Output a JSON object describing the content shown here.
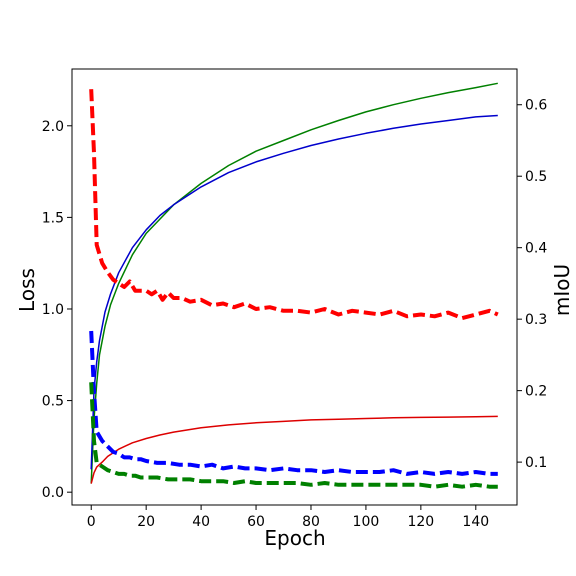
{
  "chart_data": {
    "type": "line",
    "title": "",
    "xlabel": "Epoch",
    "ylabel_left": "Loss",
    "ylabel_right": "mIoU",
    "xlim": [
      -7,
      155
    ],
    "ylim_left": [
      -0.07,
      2.31
    ],
    "ylim_right": [
      0.04,
      0.65
    ],
    "x_ticks": [
      0,
      20,
      40,
      60,
      80,
      100,
      120,
      140
    ],
    "x_tick_labels": [
      "0",
      "20",
      "40",
      "60",
      "80",
      "100",
      "120",
      "140"
    ],
    "y_left_ticks": [
      0.0,
      0.5,
      1.0,
      1.5,
      2.0
    ],
    "y_left_tick_labels": [
      "0.0",
      "0.5",
      "1.0",
      "1.5",
      "2.0"
    ],
    "y_right_ticks": [
      0.1,
      0.2,
      0.3,
      0.4,
      0.5,
      0.6
    ],
    "y_right_tick_labels": [
      "0.1",
      "0.2",
      "0.3",
      "0.4",
      "0.5",
      "0.6"
    ],
    "grid": false,
    "legend": "none",
    "series": [
      {
        "axis": "left",
        "style": "dashed",
        "color": "#ff0000",
        "x": [
          0,
          1,
          2,
          4,
          6,
          8,
          10,
          12,
          14,
          16,
          18,
          20,
          22,
          24,
          26,
          28,
          30,
          33,
          36,
          40,
          44,
          48,
          52,
          56,
          60,
          65,
          70,
          75,
          80,
          85,
          90,
          95,
          100,
          105,
          110,
          115,
          120,
          125,
          130,
          135,
          140,
          145,
          148
        ],
        "y": [
          2.2,
          1.85,
          1.35,
          1.25,
          1.2,
          1.16,
          1.14,
          1.12,
          1.15,
          1.1,
          1.1,
          1.1,
          1.08,
          1.1,
          1.05,
          1.09,
          1.06,
          1.06,
          1.04,
          1.05,
          1.02,
          1.03,
          1.01,
          1.03,
          1.0,
          1.01,
          0.99,
          0.99,
          0.98,
          1.0,
          0.97,
          0.99,
          0.98,
          0.97,
          0.99,
          0.96,
          0.97,
          0.96,
          0.98,
          0.95,
          0.97,
          0.99,
          0.97
        ]
      },
      {
        "axis": "left",
        "style": "dashed",
        "color": "#0000ff",
        "x": [
          0,
          1,
          2,
          4,
          6,
          8,
          10,
          12,
          14,
          16,
          18,
          20,
          24,
          28,
          32,
          36,
          40,
          44,
          48,
          52,
          56,
          60,
          65,
          70,
          75,
          80,
          85,
          90,
          95,
          100,
          105,
          110,
          115,
          120,
          125,
          130,
          135,
          140,
          145,
          148
        ],
        "y": [
          0.88,
          0.55,
          0.33,
          0.28,
          0.25,
          0.22,
          0.21,
          0.19,
          0.19,
          0.18,
          0.18,
          0.17,
          0.16,
          0.16,
          0.15,
          0.15,
          0.14,
          0.15,
          0.13,
          0.14,
          0.13,
          0.13,
          0.12,
          0.13,
          0.12,
          0.12,
          0.11,
          0.12,
          0.11,
          0.11,
          0.11,
          0.12,
          0.1,
          0.11,
          0.1,
          0.11,
          0.1,
          0.11,
          0.1,
          0.1
        ]
      },
      {
        "axis": "left",
        "style": "dashed",
        "color": "#008000",
        "x": [
          0,
          1,
          2,
          4,
          6,
          8,
          10,
          12,
          14,
          16,
          18,
          20,
          24,
          28,
          32,
          36,
          40,
          44,
          48,
          52,
          56,
          60,
          65,
          70,
          75,
          80,
          85,
          90,
          95,
          100,
          105,
          110,
          115,
          120,
          125,
          130,
          135,
          140,
          145,
          148
        ],
        "y": [
          0.6,
          0.28,
          0.16,
          0.14,
          0.12,
          0.11,
          0.1,
          0.1,
          0.09,
          0.09,
          0.08,
          0.08,
          0.08,
          0.07,
          0.07,
          0.07,
          0.06,
          0.06,
          0.06,
          0.05,
          0.06,
          0.05,
          0.05,
          0.05,
          0.05,
          0.04,
          0.05,
          0.04,
          0.04,
          0.04,
          0.04,
          0.04,
          0.04,
          0.04,
          0.03,
          0.04,
          0.03,
          0.04,
          0.03,
          0.03
        ]
      },
      {
        "axis": "right",
        "style": "solid",
        "color": "#008000",
        "x": [
          0,
          1,
          2,
          3,
          5,
          7,
          10,
          15,
          20,
          25,
          30,
          40,
          50,
          60,
          70,
          80,
          90,
          100,
          110,
          120,
          130,
          140,
          148
        ],
        "y": [
          0.07,
          0.16,
          0.21,
          0.25,
          0.29,
          0.32,
          0.35,
          0.39,
          0.42,
          0.44,
          0.46,
          0.49,
          0.515,
          0.535,
          0.55,
          0.565,
          0.578,
          0.59,
          0.6,
          0.609,
          0.617,
          0.624,
          0.63
        ]
      },
      {
        "axis": "right",
        "style": "solid",
        "color": "#0000cc",
        "x": [
          0,
          1,
          2,
          3,
          5,
          7,
          10,
          15,
          20,
          25,
          30,
          40,
          50,
          60,
          70,
          80,
          90,
          100,
          110,
          120,
          130,
          140,
          148
        ],
        "y": [
          0.09,
          0.2,
          0.24,
          0.27,
          0.31,
          0.335,
          0.365,
          0.4,
          0.425,
          0.445,
          0.46,
          0.485,
          0.505,
          0.52,
          0.532,
          0.543,
          0.552,
          0.56,
          0.567,
          0.573,
          0.578,
          0.583,
          0.585
        ]
      },
      {
        "axis": "right",
        "style": "solid",
        "color": "#dd0000",
        "x": [
          0,
          1,
          2,
          4,
          6,
          10,
          15,
          20,
          25,
          30,
          40,
          50,
          60,
          70,
          80,
          90,
          100,
          110,
          120,
          130,
          140,
          148
        ],
        "y": [
          0.07,
          0.085,
          0.093,
          0.1,
          0.108,
          0.118,
          0.127,
          0.133,
          0.138,
          0.142,
          0.148,
          0.152,
          0.155,
          0.157,
          0.159,
          0.16,
          0.161,
          0.162,
          0.1625,
          0.163,
          0.1635,
          0.164
        ]
      }
    ]
  }
}
